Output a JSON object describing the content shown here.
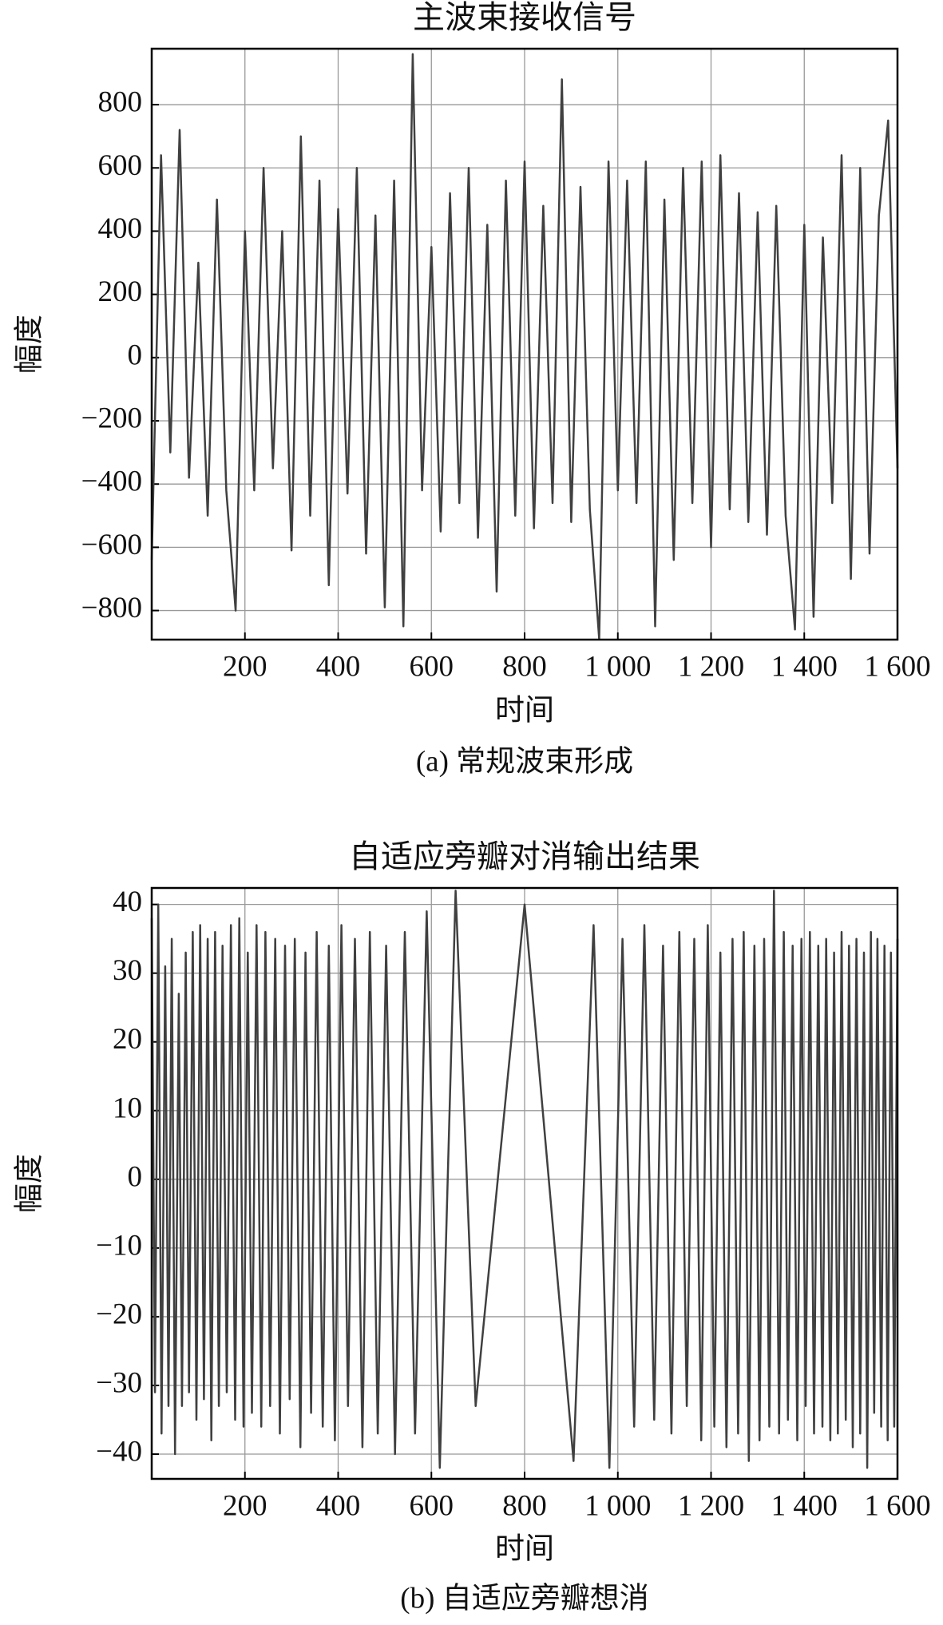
{
  "chart_data": [
    {
      "type": "line",
      "title": "主波束接收信号",
      "x_label": "时间",
      "y_label": "幅度",
      "caption": "(a) 常规波束形成",
      "xlim": [
        0,
        1600
      ],
      "ylim": [
        -892,
        977
      ],
      "grid": true,
      "xticks": [
        200,
        400,
        600,
        800,
        {
          "value": 1000,
          "label": "1 000"
        },
        {
          "value": 1200,
          "label": "1 200"
        },
        {
          "value": 1400,
          "label": "1 400"
        },
        {
          "value": 1600,
          "label": "1 600"
        }
      ],
      "yticks": [
        {
          "value": -800,
          "label": "−800"
        },
        {
          "value": -600,
          "label": "−600"
        },
        {
          "value": -400,
          "label": "−400"
        },
        {
          "value": -200,
          "label": "−200"
        },
        0,
        200,
        400,
        600,
        800
      ],
      "x": [
        0,
        20,
        40,
        60,
        80,
        100,
        120,
        140,
        160,
        180,
        200,
        220,
        240,
        260,
        280,
        300,
        320,
        340,
        360,
        380,
        400,
        420,
        440,
        460,
        480,
        500,
        520,
        540,
        560,
        580,
        600,
        620,
        640,
        660,
        680,
        700,
        720,
        740,
        760,
        780,
        800,
        820,
        840,
        860,
        880,
        900,
        920,
        940,
        960,
        980,
        1000,
        1020,
        1040,
        1060,
        1080,
        1100,
        1120,
        1140,
        1160,
        1180,
        1200,
        1220,
        1240,
        1260,
        1280,
        1300,
        1320,
        1340,
        1360,
        1380,
        1400,
        1420,
        1440,
        1460,
        1480,
        1500,
        1520,
        1540,
        1560,
        1580,
        1600
      ],
      "series": [
        {
          "color": "#404040",
          "values": [
            -640,
            640,
            -300,
            720,
            -380,
            300,
            -500,
            500,
            -420,
            -800,
            400,
            -420,
            600,
            -350,
            400,
            -610,
            700,
            -500,
            560,
            -720,
            470,
            -430,
            600,
            -620,
            450,
            -790,
            560,
            -850,
            960,
            -420,
            350,
            -550,
            520,
            -460,
            600,
            -570,
            420,
            -740,
            560,
            -500,
            620,
            -540,
            480,
            -460,
            880,
            -520,
            540,
            -480,
            -890,
            620,
            -420,
            560,
            -460,
            620,
            -850,
            500,
            -640,
            600,
            -460,
            620,
            -600,
            640,
            -480,
            520,
            -520,
            460,
            -560,
            480,
            -500,
            -860,
            420,
            -820,
            380,
            -460,
            640,
            -700,
            600,
            -620,
            450,
            750,
            -350
          ]
        }
      ]
    },
    {
      "type": "line",
      "title": "自适应旁瓣对消输出结果",
      "x_label": "时间",
      "y_label": "幅度",
      "caption": "(b) 自适应旁瓣想消",
      "xlim": [
        0,
        1600
      ],
      "ylim": [
        -43.6,
        42.4
      ],
      "grid": true,
      "xticks": [
        200,
        400,
        600,
        800,
        {
          "value": 1000,
          "label": "1 000"
        },
        {
          "value": 1200,
          "label": "1 200"
        },
        {
          "value": 1400,
          "label": "1 400"
        },
        {
          "value": 1600,
          "label": "1 600"
        }
      ],
      "yticks": [
        {
          "value": -40,
          "label": "−40"
        },
        {
          "value": -30,
          "label": "−30"
        },
        {
          "value": -20,
          "label": "−20"
        },
        {
          "value": -10,
          "label": "−10"
        },
        0,
        10,
        20,
        30,
        40
      ],
      "x": [
        0,
        7,
        14,
        21,
        29,
        36,
        43,
        50,
        58,
        65,
        73,
        80,
        88,
        96,
        104,
        112,
        120,
        128,
        136,
        144,
        152,
        161,
        170,
        179,
        188,
        197,
        206,
        215,
        225,
        235,
        244,
        254,
        265,
        275,
        286,
        296,
        307,
        319,
        330,
        342,
        354,
        367,
        380,
        393,
        407,
        421,
        436,
        452,
        468,
        485,
        503,
        522,
        543,
        565,
        590,
        618,
        652,
        695,
        800,
        905,
        948,
        982,
        1010,
        1035,
        1057,
        1078,
        1097,
        1115,
        1132,
        1148,
        1164,
        1179,
        1193,
        1207,
        1220,
        1233,
        1246,
        1258,
        1270,
        1281,
        1293,
        1304,
        1314,
        1325,
        1335,
        1346,
        1356,
        1365,
        1375,
        1385,
        1394,
        1403,
        1412,
        1421,
        1430,
        1439,
        1447,
        1456,
        1464,
        1472,
        1480,
        1489,
        1496,
        1504,
        1512,
        1520,
        1528,
        1535,
        1543,
        1550,
        1557,
        1565,
        1572,
        1579,
        1586,
        1593,
        1600
      ],
      "series": [
        {
          "color": "#404040",
          "values": [
            38,
            -31,
            40,
            -37,
            31,
            -33,
            35,
            -40,
            27,
            -33,
            33,
            -31,
            36,
            -35,
            37,
            -32,
            35,
            -38,
            36,
            -33,
            34,
            -31,
            37,
            -35,
            38,
            -36,
            33,
            -34,
            37,
            -36,
            36,
            -33,
            35,
            -37,
            34,
            -32,
            35,
            -39,
            33,
            -34,
            36,
            -36,
            34,
            -38,
            37,
            -33,
            35,
            -39,
            36,
            -37,
            34,
            -40,
            36,
            -37,
            39,
            -42,
            42,
            -33,
            40,
            -41,
            37,
            -42,
            35,
            -36,
            37,
            -35,
            34,
            -37,
            36,
            -33,
            35,
            -38,
            37,
            -36,
            33,
            -39,
            35,
            -37,
            36,
            -41,
            34,
            -38,
            35,
            -36,
            42,
            -37,
            36,
            -35,
            34,
            -38,
            35,
            -33,
            36,
            -37,
            34,
            -36,
            35,
            -38,
            33,
            -37,
            36,
            -35,
            34,
            -39,
            35,
            -37,
            33,
            -42,
            36,
            -34,
            35,
            -36,
            34,
            -38,
            33,
            -36,
            35
          ]
        }
      ]
    }
  ]
}
